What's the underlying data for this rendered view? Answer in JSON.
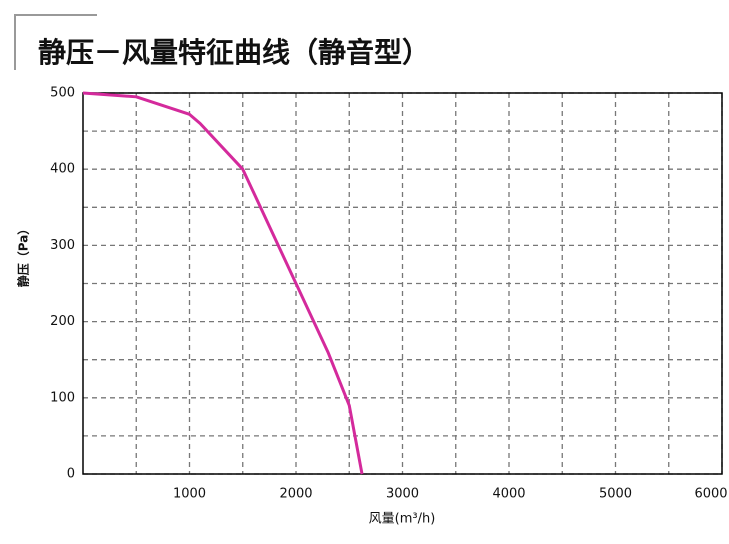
{
  "chart_data": {
    "type": "line",
    "title": "静压－风量特征曲线（静音型）",
    "x_label": "风量(m³/h)",
    "y_label": "静压（Pa）",
    "x": [
      0,
      500,
      1000,
      1100,
      1500,
      2000,
      2300,
      2500,
      2620
    ],
    "series": [
      {
        "name": "静音型",
        "color": "#d42a9c",
        "values": [
          500,
          495,
          472,
          460,
          400,
          250,
          160,
          90,
          0
        ]
      }
    ],
    "xlim": [
      0,
      6000
    ],
    "ylim": [
      0,
      500
    ],
    "xticks": [
      1000,
      2000,
      3000,
      4000,
      5000,
      6000
    ],
    "yticks": [
      0,
      100,
      200,
      300,
      400,
      500
    ],
    "x_minor_ticks": [
      500,
      1500,
      2500,
      3500,
      4500,
      5500
    ],
    "y_minor_ticks": [
      50,
      150,
      250,
      350,
      450
    ],
    "grid": true
  }
}
